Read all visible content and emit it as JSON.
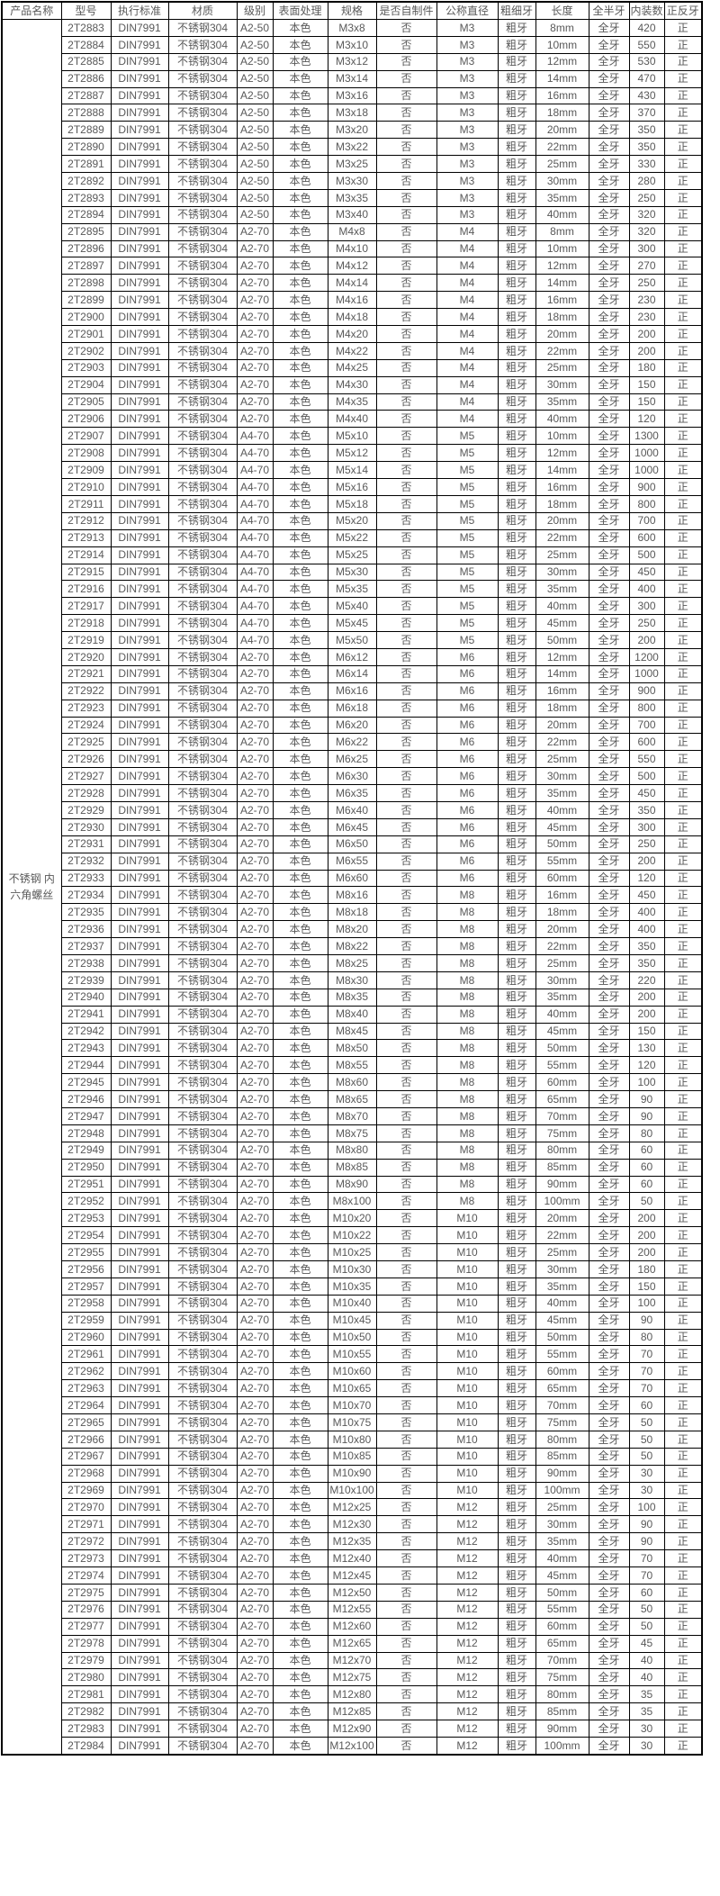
{
  "colors": {
    "border": "#000000",
    "text": "#595959",
    "background": "#ffffff"
  },
  "product": {
    "name": "不锈钢 内六角螺丝"
  },
  "table": {
    "headers": [
      "产品名称",
      "型号",
      "执行标准",
      "材质",
      "级别",
      "表面处理",
      "规格",
      "是否自制件",
      "公称直径",
      "粗细牙",
      "长度",
      "全半牙",
      "内装数",
      "正反牙"
    ],
    "constants": {
      "standard": "DIN7991",
      "material": "不锈钢304",
      "surface": "本色",
      "self_made": "否",
      "coarse_fine": "粗牙",
      "full_half": "全牙",
      "direction": "正"
    },
    "rows": [
      [
        "2T2883",
        "A2-50",
        "M3x8",
        "M3",
        "8mm",
        "420"
      ],
      [
        "2T2884",
        "A2-50",
        "M3x10",
        "M3",
        "10mm",
        "550"
      ],
      [
        "2T2885",
        "A2-50",
        "M3x12",
        "M3",
        "12mm",
        "530"
      ],
      [
        "2T2886",
        "A2-50",
        "M3x14",
        "M3",
        "14mm",
        "470"
      ],
      [
        "2T2887",
        "A2-50",
        "M3x16",
        "M3",
        "16mm",
        "430"
      ],
      [
        "2T2888",
        "A2-50",
        "M3x18",
        "M3",
        "18mm",
        "370"
      ],
      [
        "2T2889",
        "A2-50",
        "M3x20",
        "M3",
        "20mm",
        "350"
      ],
      [
        "2T2890",
        "A2-50",
        "M3x22",
        "M3",
        "22mm",
        "350"
      ],
      [
        "2T2891",
        "A2-50",
        "M3x25",
        "M3",
        "25mm",
        "330"
      ],
      [
        "2T2892",
        "A2-50",
        "M3x30",
        "M3",
        "30mm",
        "280"
      ],
      [
        "2T2893",
        "A2-50",
        "M3x35",
        "M3",
        "35mm",
        "250"
      ],
      [
        "2T2894",
        "A2-50",
        "M3x40",
        "M3",
        "40mm",
        "320"
      ],
      [
        "2T2895",
        "A2-70",
        "M4x8",
        "M4",
        "8mm",
        "320"
      ],
      [
        "2T2896",
        "A2-70",
        "M4x10",
        "M4",
        "10mm",
        "300"
      ],
      [
        "2T2897",
        "A2-70",
        "M4x12",
        "M4",
        "12mm",
        "270"
      ],
      [
        "2T2898",
        "A2-70",
        "M4x14",
        "M4",
        "14mm",
        "250"
      ],
      [
        "2T2899",
        "A2-70",
        "M4x16",
        "M4",
        "16mm",
        "230"
      ],
      [
        "2T2900",
        "A2-70",
        "M4x18",
        "M4",
        "18mm",
        "230"
      ],
      [
        "2T2901",
        "A2-70",
        "M4x20",
        "M4",
        "20mm",
        "200"
      ],
      [
        "2T2902",
        "A2-70",
        "M4x22",
        "M4",
        "22mm",
        "200"
      ],
      [
        "2T2903",
        "A2-70",
        "M4x25",
        "M4",
        "25mm",
        "180"
      ],
      [
        "2T2904",
        "A2-70",
        "M4x30",
        "M4",
        "30mm",
        "150"
      ],
      [
        "2T2905",
        "A2-70",
        "M4x35",
        "M4",
        "35mm",
        "150"
      ],
      [
        "2T2906",
        "A2-70",
        "M4x40",
        "M4",
        "40mm",
        "120"
      ],
      [
        "2T2907",
        "A4-70",
        "M5x10",
        "M5",
        "10mm",
        "1300"
      ],
      [
        "2T2908",
        "A4-70",
        "M5x12",
        "M5",
        "12mm",
        "1000"
      ],
      [
        "2T2909",
        "A4-70",
        "M5x14",
        "M5",
        "14mm",
        "1000"
      ],
      [
        "2T2910",
        "A4-70",
        "M5x16",
        "M5",
        "16mm",
        "900"
      ],
      [
        "2T2911",
        "A4-70",
        "M5x18",
        "M5",
        "18mm",
        "800"
      ],
      [
        "2T2912",
        "A4-70",
        "M5x20",
        "M5",
        "20mm",
        "700"
      ],
      [
        "2T2913",
        "A4-70",
        "M5x22",
        "M5",
        "22mm",
        "600"
      ],
      [
        "2T2914",
        "A4-70",
        "M5x25",
        "M5",
        "25mm",
        "500"
      ],
      [
        "2T2915",
        "A4-70",
        "M5x30",
        "M5",
        "30mm",
        "450"
      ],
      [
        "2T2916",
        "A4-70",
        "M5x35",
        "M5",
        "35mm",
        "400"
      ],
      [
        "2T2917",
        "A4-70",
        "M5x40",
        "M5",
        "40mm",
        "300"
      ],
      [
        "2T2918",
        "A4-70",
        "M5x45",
        "M5",
        "45mm",
        "250"
      ],
      [
        "2T2919",
        "A4-70",
        "M5x50",
        "M5",
        "50mm",
        "200"
      ],
      [
        "2T2920",
        "A2-70",
        "M6x12",
        "M6",
        "12mm",
        "1200"
      ],
      [
        "2T2921",
        "A2-70",
        "M6x14",
        "M6",
        "14mm",
        "1000"
      ],
      [
        "2T2922",
        "A2-70",
        "M6x16",
        "M6",
        "16mm",
        "900"
      ],
      [
        "2T2923",
        "A2-70",
        "M6x18",
        "M6",
        "18mm",
        "800"
      ],
      [
        "2T2924",
        "A2-70",
        "M6x20",
        "M6",
        "20mm",
        "700"
      ],
      [
        "2T2925",
        "A2-70",
        "M6x22",
        "M6",
        "22mm",
        "600"
      ],
      [
        "2T2926",
        "A2-70",
        "M6x25",
        "M6",
        "25mm",
        "550"
      ],
      [
        "2T2927",
        "A2-70",
        "M6x30",
        "M6",
        "30mm",
        "500"
      ],
      [
        "2T2928",
        "A2-70",
        "M6x35",
        "M6",
        "35mm",
        "450"
      ],
      [
        "2T2929",
        "A2-70",
        "M6x40",
        "M6",
        "40mm",
        "350"
      ],
      [
        "2T2930",
        "A2-70",
        "M6x45",
        "M6",
        "45mm",
        "300"
      ],
      [
        "2T2931",
        "A2-70",
        "M6x50",
        "M6",
        "50mm",
        "250"
      ],
      [
        "2T2932",
        "A2-70",
        "M6x55",
        "M6",
        "55mm",
        "200"
      ],
      [
        "2T2933",
        "A2-70",
        "M6x60",
        "M6",
        "60mm",
        "120"
      ],
      [
        "2T2934",
        "A2-70",
        "M8x16",
        "M8",
        "16mm",
        "450"
      ],
      [
        "2T2935",
        "A2-70",
        "M8x18",
        "M8",
        "18mm",
        "400"
      ],
      [
        "2T2936",
        "A2-70",
        "M8x20",
        "M8",
        "20mm",
        "400"
      ],
      [
        "2T2937",
        "A2-70",
        "M8x22",
        "M8",
        "22mm",
        "350"
      ],
      [
        "2T2938",
        "A2-70",
        "M8x25",
        "M8",
        "25mm",
        "350"
      ],
      [
        "2T2939",
        "A2-70",
        "M8x30",
        "M8",
        "30mm",
        "220"
      ],
      [
        "2T2940",
        "A2-70",
        "M8x35",
        "M8",
        "35mm",
        "200"
      ],
      [
        "2T2941",
        "A2-70",
        "M8x40",
        "M8",
        "40mm",
        "200"
      ],
      [
        "2T2942",
        "A2-70",
        "M8x45",
        "M8",
        "45mm",
        "150"
      ],
      [
        "2T2943",
        "A2-70",
        "M8x50",
        "M8",
        "50mm",
        "130"
      ],
      [
        "2T2944",
        "A2-70",
        "M8x55",
        "M8",
        "55mm",
        "120"
      ],
      [
        "2T2945",
        "A2-70",
        "M8x60",
        "M8",
        "60mm",
        "100"
      ],
      [
        "2T2946",
        "A2-70",
        "M8x65",
        "M8",
        "65mm",
        "90"
      ],
      [
        "2T2947",
        "A2-70",
        "M8x70",
        "M8",
        "70mm",
        "90"
      ],
      [
        "2T2948",
        "A2-70",
        "M8x75",
        "M8",
        "75mm",
        "80"
      ],
      [
        "2T2949",
        "A2-70",
        "M8x80",
        "M8",
        "80mm",
        "60"
      ],
      [
        "2T2950",
        "A2-70",
        "M8x85",
        "M8",
        "85mm",
        "60"
      ],
      [
        "2T2951",
        "A2-70",
        "M8x90",
        "M8",
        "90mm",
        "60"
      ],
      [
        "2T2952",
        "A2-70",
        "M8x100",
        "M8",
        "100mm",
        "50"
      ],
      [
        "2T2953",
        "A2-70",
        "M10x20",
        "M10",
        "20mm",
        "200"
      ],
      [
        "2T2954",
        "A2-70",
        "M10x22",
        "M10",
        "22mm",
        "200"
      ],
      [
        "2T2955",
        "A2-70",
        "M10x25",
        "M10",
        "25mm",
        "200"
      ],
      [
        "2T2956",
        "A2-70",
        "M10x30",
        "M10",
        "30mm",
        "180"
      ],
      [
        "2T2957",
        "A2-70",
        "M10x35",
        "M10",
        "35mm",
        "150"
      ],
      [
        "2T2958",
        "A2-70",
        "M10x40",
        "M10",
        "40mm",
        "100"
      ],
      [
        "2T2959",
        "A2-70",
        "M10x45",
        "M10",
        "45mm",
        "90"
      ],
      [
        "2T2960",
        "A2-70",
        "M10x50",
        "M10",
        "50mm",
        "80"
      ],
      [
        "2T2961",
        "A2-70",
        "M10x55",
        "M10",
        "55mm",
        "70"
      ],
      [
        "2T2962",
        "A2-70",
        "M10x60",
        "M10",
        "60mm",
        "70"
      ],
      [
        "2T2963",
        "A2-70",
        "M10x65",
        "M10",
        "65mm",
        "70"
      ],
      [
        "2T2964",
        "A2-70",
        "M10x70",
        "M10",
        "70mm",
        "60"
      ],
      [
        "2T2965",
        "A2-70",
        "M10x75",
        "M10",
        "75mm",
        "50"
      ],
      [
        "2T2966",
        "A2-70",
        "M10x80",
        "M10",
        "80mm",
        "50"
      ],
      [
        "2T2967",
        "A2-70",
        "M10x85",
        "M10",
        "85mm",
        "50"
      ],
      [
        "2T2968",
        "A2-70",
        "M10x90",
        "M10",
        "90mm",
        "30"
      ],
      [
        "2T2969",
        "A2-70",
        "M10x100",
        "M10",
        "100mm",
        "30"
      ],
      [
        "2T2970",
        "A2-70",
        "M12x25",
        "M12",
        "25mm",
        "100"
      ],
      [
        "2T2971",
        "A2-70",
        "M12x30",
        "M12",
        "30mm",
        "90"
      ],
      [
        "2T2972",
        "A2-70",
        "M12x35",
        "M12",
        "35mm",
        "90"
      ],
      [
        "2T2973",
        "A2-70",
        "M12x40",
        "M12",
        "40mm",
        "70"
      ],
      [
        "2T2974",
        "A2-70",
        "M12x45",
        "M12",
        "45mm",
        "70"
      ],
      [
        "2T2975",
        "A2-70",
        "M12x50",
        "M12",
        "50mm",
        "60"
      ],
      [
        "2T2976",
        "A2-70",
        "M12x55",
        "M12",
        "55mm",
        "50"
      ],
      [
        "2T2977",
        "A2-70",
        "M12x60",
        "M12",
        "60mm",
        "50"
      ],
      [
        "2T2978",
        "A2-70",
        "M12x65",
        "M12",
        "65mm",
        "45"
      ],
      [
        "2T2979",
        "A2-70",
        "M12x70",
        "M12",
        "70mm",
        "40"
      ],
      [
        "2T2980",
        "A2-70",
        "M12x75",
        "M12",
        "75mm",
        "40"
      ],
      [
        "2T2981",
        "A2-70",
        "M12x80",
        "M12",
        "80mm",
        "35"
      ],
      [
        "2T2982",
        "A2-70",
        "M12x85",
        "M12",
        "85mm",
        "35"
      ],
      [
        "2T2983",
        "A2-70",
        "M12x90",
        "M12",
        "90mm",
        "30"
      ],
      [
        "2T2984",
        "A2-70",
        "M12x100",
        "M12",
        "100mm",
        "30"
      ]
    ]
  }
}
